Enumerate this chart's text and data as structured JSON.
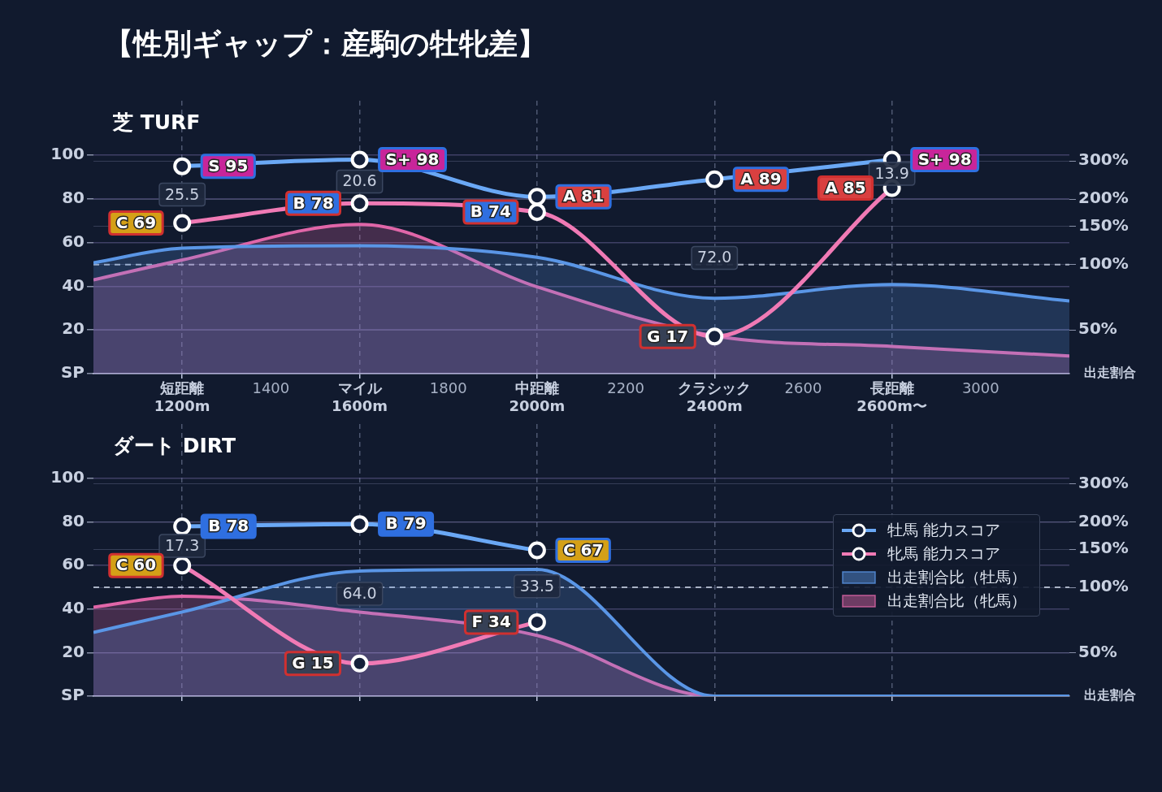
{
  "chart_data": [
    {
      "type": "line",
      "title": "【性別ギャップ：産駒の牡牝差】",
      "subtitle": "芝 TURF",
      "y2label": "出走割合",
      "xlim": [
        1000,
        3200
      ],
      "xticks": [
        {
          "value": 1200,
          "label": "短距離\n1200m"
        },
        1400,
        {
          "value": 1600,
          "label": "マイル\n1600m"
        },
        1800,
        {
          "value": 2000,
          "label": "中距離\n2000m"
        },
        2200,
        {
          "value": 2400,
          "label": "クラシック\n2400m"
        },
        2600,
        {
          "value": 2800,
          "label": "長距離\n2600m〜"
        },
        3000
      ],
      "ylim": [
        0,
        125
      ],
      "yticks": [
        {
          "value": 0,
          "label": "SP"
        },
        20,
        40,
        60,
        80,
        100
      ],
      "log": "y2",
      "y2lim": [
        31.5,
        567
      ],
      "y2ticks": [
        {
          "value": 50,
          "label": "50%"
        },
        {
          "value": 100,
          "label": "100%"
        },
        {
          "value": 150,
          "label": "150%"
        },
        {
          "value": 200,
          "label": "200%"
        },
        {
          "value": 300,
          "label": "300%"
        }
      ],
      "grid": true,
      "legend": false,
      "marker": "circle",
      "ref_lines": [
        {
          "axis": "y2",
          "value": 100,
          "color": "#aab3c5",
          "line_style": "dashed"
        }
      ],
      "series": [
        {
          "type": "area",
          "axis": "y2",
          "color": "#5a96e6",
          "marker": "none",
          "x": [
            1000,
            1200,
            1600,
            2000,
            2400,
            2800,
            3200
          ],
          "values": [
            102,
            119,
            122,
            108,
            70,
            81,
            68
          ]
        },
        {
          "type": "area",
          "axis": "y2",
          "color": "#e066a8",
          "marker": "none",
          "x": [
            1000,
            1200,
            1600,
            2000,
            2400,
            2800,
            3200
          ],
          "values": [
            85,
            105,
            153,
            79,
            47,
            42,
            38
          ]
        },
        {
          "type": "line",
          "color": "#6aa8f5",
          "x": [
            1200,
            1600,
            2000,
            2400,
            2800
          ],
          "values": [
            95,
            98,
            81,
            89,
            98
          ],
          "value_labels": [
            "S 95",
            "S+ 98",
            "A 81",
            "A 89",
            "S+ 98"
          ]
        },
        {
          "type": "line",
          "color": "#f07ab5",
          "x": [
            1200,
            1600,
            2000,
            2400,
            2800
          ],
          "values": [
            69,
            78,
            74,
            17,
            85
          ],
          "value_labels": [
            "C 69",
            "B 78",
            "B 74",
            "G 17",
            "A 85"
          ]
        }
      ],
      "annotations": [
        "25.5",
        "20.6",
        null,
        "72.0",
        "13.9"
      ]
    },
    {
      "type": "line",
      "subtitle": "ダート DIRT",
      "y2label": "出走割合",
      "xlim": [
        1000,
        3200
      ],
      "xticks": [
        {
          "value": 1200,
          "label": null
        },
        {
          "value": 1600,
          "label": null
        },
        {
          "value": 2000,
          "label": null
        },
        {
          "value": 2400,
          "label": null
        },
        {
          "value": 2800,
          "label": null
        }
      ],
      "tick_labels": "y",
      "ylim": [
        0,
        125
      ],
      "yticks": [
        {
          "value": 0,
          "label": "SP"
        },
        20,
        40,
        60,
        80,
        100
      ],
      "log": "y2",
      "y2lim": [
        31.5,
        567
      ],
      "y2ticks": [
        {
          "value": 50,
          "label": "50%"
        },
        {
          "value": 100,
          "label": "100%"
        },
        {
          "value": 150,
          "label": "150%"
        },
        {
          "value": 200,
          "label": "200%"
        },
        {
          "value": 300,
          "label": "300%"
        }
      ],
      "grid": true,
      "legend": "right",
      "marker": "circle",
      "ref_lines": [
        {
          "axis": "y2",
          "value": 100,
          "color": "#aab3c5",
          "line_style": "dashed"
        }
      ],
      "series": [
        {
          "name": "牡馬 能力スコア",
          "type": "line",
          "color": "#6aa8f5",
          "x": [
            1200,
            1600,
            2000
          ],
          "values": [
            78,
            79,
            67
          ],
          "value_labels": [
            "B 78",
            "B 79",
            "C 67"
          ]
        },
        {
          "name": "牝馬 能力スコア",
          "type": "line",
          "color": "#f07ab5",
          "x": [
            1200,
            1600,
            2000
          ],
          "values": [
            60,
            15,
            34
          ],
          "value_labels": [
            "C 60",
            "G 15",
            "F 34"
          ]
        },
        {
          "name": "出走割合比（牡馬）",
          "type": "area",
          "axis": "y2",
          "color": "#5a96e6",
          "marker": "none",
          "x": [
            1000,
            1200,
            1600,
            2000,
            2400,
            2800,
            3200
          ],
          "values": [
            62,
            77,
            119,
            121,
            31.5,
            31.5,
            31.5
          ]
        },
        {
          "name": "出走割合比（牝馬）",
          "type": "area",
          "axis": "y2",
          "color": "#e066a8",
          "marker": "none",
          "x": [
            1000,
            1200,
            1600,
            2000,
            2400,
            2800,
            3200
          ],
          "values": [
            81,
            91,
            77,
            60,
            31.5,
            31.5,
            31.5
          ]
        }
      ],
      "annotations": [
        "17.3",
        "64.0",
        "33.5"
      ]
    }
  ]
}
